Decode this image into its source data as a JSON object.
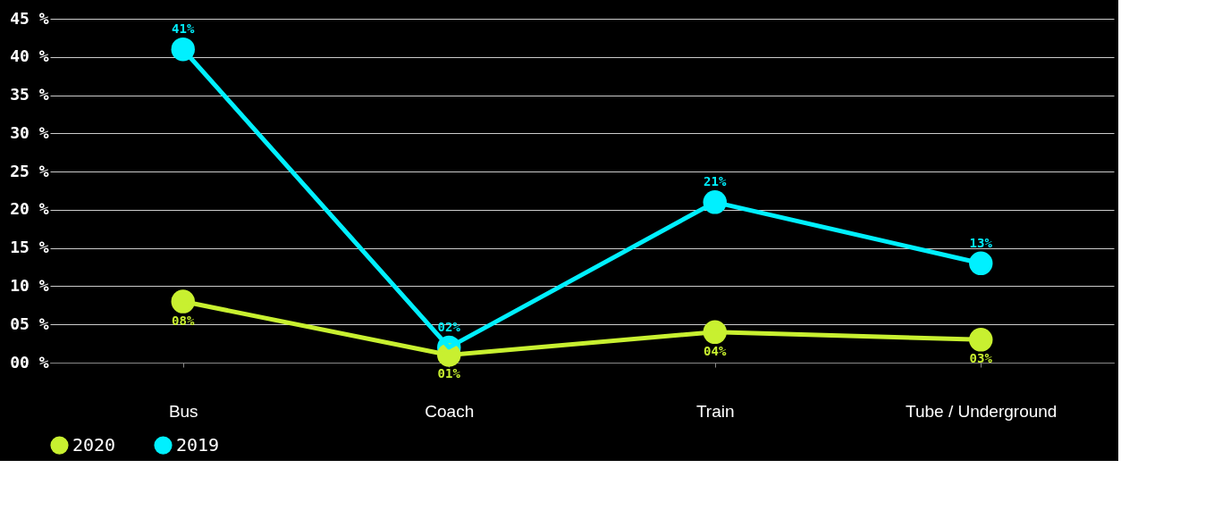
{
  "chart_data": {
    "type": "line",
    "categories": [
      "Bus",
      "Coach",
      "Train",
      "Tube / Underground"
    ],
    "series": [
      {
        "name": "2020",
        "color": "#c8f030",
        "values": [
          8,
          1,
          4,
          3
        ],
        "value_labels": [
          "08%",
          "01%",
          "04%",
          "03%"
        ]
      },
      {
        "name": "2019",
        "color": "#00f0ff",
        "values": [
          41,
          2,
          21,
          13
        ],
        "value_labels": [
          "41%",
          "02%",
          "21%",
          "13%"
        ]
      }
    ],
    "ylim": [
      0,
      45
    ],
    "yticks": [
      {
        "value": 0,
        "label": "00 %"
      },
      {
        "value": 5,
        "label": "05 %"
      },
      {
        "value": 10,
        "label": "10 %"
      },
      {
        "value": 15,
        "label": "15 %"
      },
      {
        "value": 20,
        "label": "20 %"
      },
      {
        "value": 25,
        "label": "25 %"
      },
      {
        "value": 30,
        "label": "30 %"
      },
      {
        "value": 35,
        "label": "35 %"
      },
      {
        "value": 40,
        "label": "40 %"
      },
      {
        "value": 45,
        "label": "45 %"
      }
    ],
    "grid": "y",
    "legend": "bottom left",
    "marker": "circle",
    "line_style": "solid"
  }
}
